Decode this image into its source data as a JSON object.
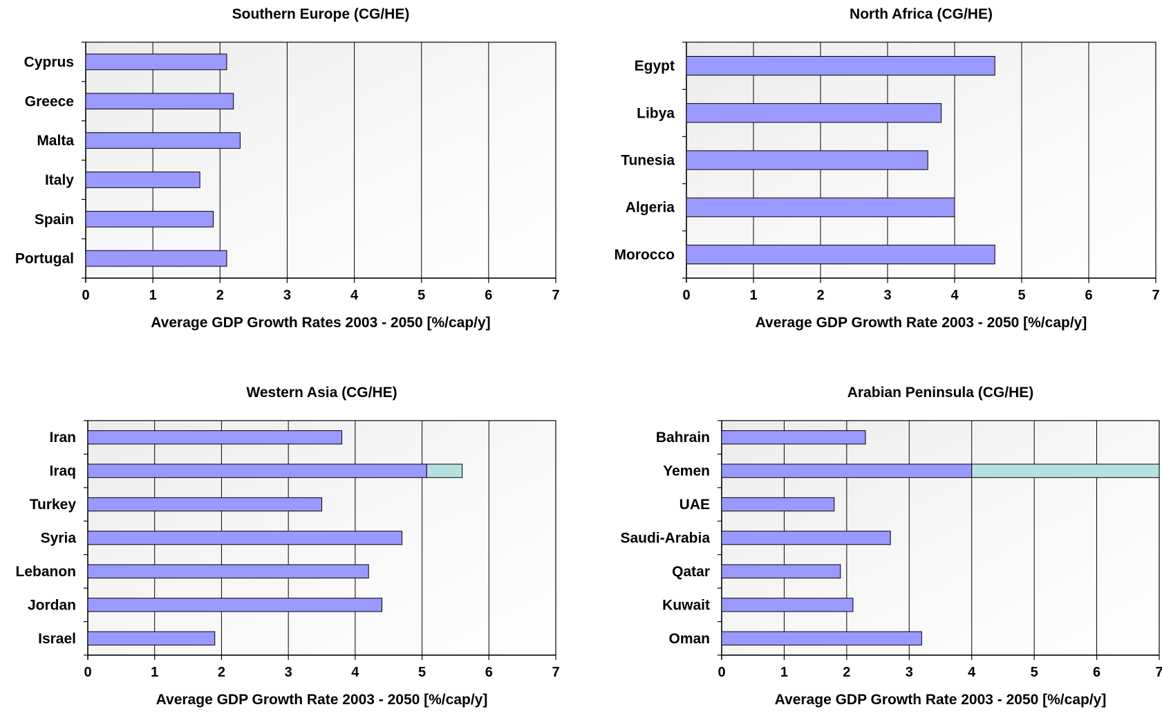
{
  "chart_data": [
    {
      "type": "bar",
      "orientation": "horizontal",
      "title": "Southern Europe (CG/HE)",
      "xlabel": "Average GDP Growth Rates 2003 - 2050 [%/cap/y]",
      "categories": [
        "Cyprus",
        "Greece",
        "Malta",
        "Italy",
        "Spain",
        "Portugal"
      ],
      "series": [
        {
          "values": [
            2.1,
            2.2,
            2.3,
            1.7,
            1.9,
            2.1
          ],
          "color": "#9999ff"
        }
      ],
      "xlim": [
        0,
        7
      ],
      "xticks": [
        "0",
        "1",
        "2",
        "3",
        "4",
        "5",
        "6",
        "7"
      ],
      "grid": "vertical"
    },
    {
      "type": "bar",
      "orientation": "horizontal",
      "title": "North Africa (CG/HE)",
      "xlabel": "Average GDP Growth Rate 2003 - 2050 [%/cap/y]",
      "categories": [
        "Egypt",
        "Libya",
        "Tunesia",
        "Algeria",
        "Morocco"
      ],
      "series": [
        {
          "values": [
            4.6,
            3.8,
            3.6,
            4.0,
            4.6
          ],
          "color": "#9999ff"
        }
      ],
      "xlim": [
        0,
        7
      ],
      "xticks": [
        "0",
        "1",
        "2",
        "3",
        "4",
        "5",
        "6",
        "7"
      ],
      "grid": "vertical"
    },
    {
      "type": "bar",
      "orientation": "horizontal",
      "stacked": true,
      "title": "Western Asia (CG/HE)",
      "xlabel": "Average GDP Growth Rate 2003 - 2050 [%/cap/y]",
      "categories": [
        "Iran",
        "Iraq",
        "Turkey",
        "Syria",
        "Lebanon",
        "Jordan",
        "Israel"
      ],
      "series": [
        {
          "values": [
            3.8,
            5.07,
            3.5,
            4.7,
            4.2,
            4.4,
            1.9
          ],
          "color": "#9999ff"
        },
        {
          "values": [
            0,
            0.53,
            0,
            0,
            0,
            0,
            0
          ],
          "color": "#b8e0e0"
        }
      ],
      "xlim": [
        0,
        7
      ],
      "xticks": [
        "0",
        "1",
        "2",
        "3",
        "4",
        "5",
        "6",
        "7"
      ],
      "grid": "vertical"
    },
    {
      "type": "bar",
      "orientation": "horizontal",
      "stacked": true,
      "title": "Arabian Peninsula (CG/HE)",
      "xlabel": "Average GDP Growth Rate 2003 - 2050 [%/cap/y]",
      "categories": [
        "Bahrain",
        "Yemen",
        "UAE",
        "Saudi-Arabia",
        "Qatar",
        "Kuwait",
        "Oman"
      ],
      "series": [
        {
          "values": [
            2.3,
            4.0,
            1.8,
            2.7,
            1.9,
            2.1,
            3.2
          ],
          "color": "#9999ff"
        },
        {
          "values": [
            0,
            3.0,
            0,
            0,
            0,
            0,
            0
          ],
          "color": "#b8e0e0"
        }
      ],
      "xlim": [
        0,
        7
      ],
      "xticks": [
        "0",
        "1",
        "2",
        "3",
        "4",
        "5",
        "6",
        "7"
      ],
      "grid": "vertical"
    }
  ]
}
